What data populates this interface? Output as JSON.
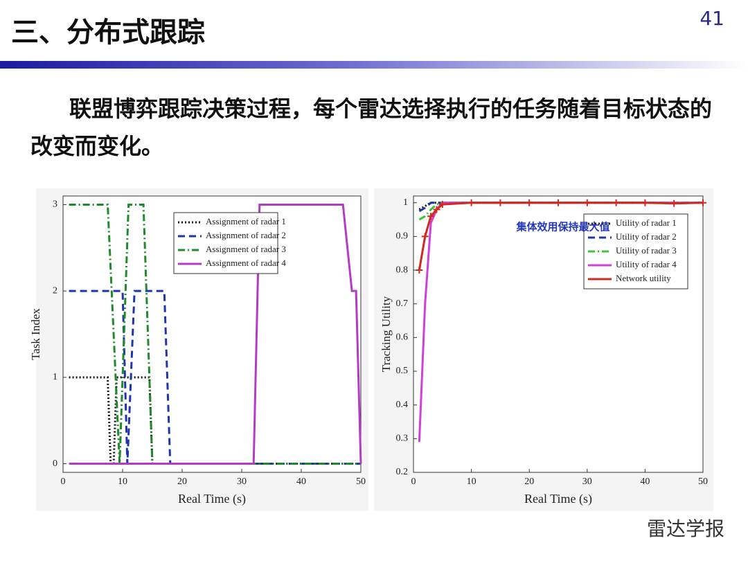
{
  "header": {
    "title": "三、分布式跟踪",
    "page_number": "41"
  },
  "paragraph": "联盟博弈跟踪决策过程，每个雷达选择执行的任务随着目标状态的改变而变化。",
  "watermark": "雷达学报",
  "chart_data": [
    {
      "type": "line",
      "xlabel": "Real Time (s)",
      "ylabel": "Task Index",
      "xlim": [
        0,
        50
      ],
      "xticks": [
        0,
        10,
        20,
        30,
        40,
        50
      ],
      "ylim": [
        -0.1,
        3.1
      ],
      "yticks": [
        0,
        1,
        2,
        3
      ],
      "grid": false,
      "legend": "upper center",
      "series": [
        {
          "name": "Assignment of radar 1",
          "color": "#111111",
          "linestyle": "dotted",
          "x": [
            1,
            7.5,
            8,
            8.5,
            9,
            14.5,
            15,
            50
          ],
          "values": [
            1,
            1,
            0,
            0,
            1,
            1,
            0,
            0
          ]
        },
        {
          "name": "Assignment of radar 2",
          "color": "#1f35a8",
          "linestyle": "dashed",
          "x": [
            1,
            10,
            10.8,
            12,
            17,
            18,
            50
          ],
          "values": [
            2,
            2,
            0,
            2,
            2,
            0,
            0
          ]
        },
        {
          "name": "Assignment of radar 3",
          "color": "#1e8a2a",
          "linestyle": "dashdot",
          "x": [
            1,
            7.5,
            9.5,
            11,
            13.5,
            15,
            50
          ],
          "values": [
            3,
            3,
            0,
            3,
            3,
            0,
            0
          ]
        },
        {
          "name": "Assignment of radar 4",
          "color": "#b43cc4",
          "linestyle": "solid",
          "x": [
            1,
            32,
            33,
            47,
            48.5,
            49.2,
            50
          ],
          "values": [
            0,
            0,
            3,
            3,
            2,
            2,
            0
          ]
        }
      ]
    },
    {
      "type": "line",
      "xlabel": "Real Time (s)",
      "ylabel": "Tracking Utility",
      "annotation": "集体效用保持最大值",
      "xlim": [
        0,
        50
      ],
      "xticks": [
        0,
        10,
        20,
        30,
        40,
        50
      ],
      "ylim": [
        0.2,
        1.02
      ],
      "yticks": [
        0.2,
        0.3,
        0.4,
        0.5,
        0.6,
        0.7,
        0.8,
        0.9,
        1
      ],
      "grid": false,
      "legend": "upper right",
      "series": [
        {
          "name": "Utility of radar 1",
          "color": "#111111",
          "linestyle": "dotted",
          "x": [
            1,
            2,
            3,
            4,
            5,
            50
          ],
          "values": [
            0.98,
            0.99,
            1,
            1,
            1,
            1
          ]
        },
        {
          "name": "Utility of radar 2",
          "color": "#1f35a8",
          "linestyle": "dashed",
          "x": [
            1,
            2,
            3,
            50
          ],
          "values": [
            0.975,
            0.985,
            1,
            1
          ]
        },
        {
          "name": "Utility of radar 3",
          "color": "#3cc43c",
          "linestyle": "dashdot",
          "x": [
            1,
            2,
            3,
            4,
            5,
            50
          ],
          "values": [
            0.95,
            0.96,
            0.98,
            0.995,
            1,
            1
          ]
        },
        {
          "name": "Utility of radar 4",
          "color": "#d040d8",
          "linestyle": "solid",
          "x": [
            1,
            2,
            3,
            4,
            5,
            50
          ],
          "values": [
            0.29,
            0.7,
            0.94,
            0.98,
            1,
            1
          ]
        },
        {
          "name": "Network utility",
          "color": "#d02a20",
          "linestyle": "solid",
          "marker": "+",
          "x": [
            1,
            2,
            3,
            4,
            5,
            10,
            15,
            20,
            25,
            30,
            35,
            40,
            45,
            50
          ],
          "values": [
            0.8,
            0.9,
            0.96,
            0.98,
            0.995,
            1,
            1,
            1,
            1,
            1,
            1,
            1,
            0.998,
            1
          ]
        }
      ]
    }
  ]
}
